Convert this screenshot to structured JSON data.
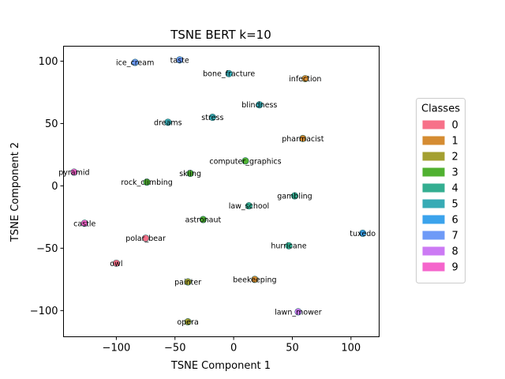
{
  "chart_data": {
    "type": "scatter",
    "title": "TSNE BERT k=10",
    "xlabel": "TSNE Component 1",
    "ylabel": "TSNE Component 2",
    "xlim": [
      -145,
      124
    ],
    "ylim": [
      -121,
      112
    ],
    "xticks": [
      -100,
      -50,
      0,
      50,
      100
    ],
    "yticks": [
      -100,
      -50,
      0,
      50,
      100
    ],
    "tick_labels": {
      "x": [
        "−100",
        "−50",
        "0",
        "50",
        "100"
      ],
      "y": [
        "−100",
        "−50",
        "0",
        "50",
        "100"
      ]
    },
    "grid": false,
    "legend": {
      "title": "Classes",
      "placement": "right",
      "entries": [
        {
          "label": "0",
          "color": "#f77189"
        },
        {
          "label": "1",
          "color": "#d58c32"
        },
        {
          "label": "2",
          "color": "#a4a031"
        },
        {
          "label": "3",
          "color": "#50b131"
        },
        {
          "label": "4",
          "color": "#34ae91"
        },
        {
          "label": "5",
          "color": "#37abb5"
        },
        {
          "label": "6",
          "color": "#3ba3ec"
        },
        {
          "label": "7",
          "color": "#6e9af7"
        },
        {
          "label": "8",
          "color": "#cc7af4"
        },
        {
          "label": "9",
          "color": "#f565cc"
        }
      ]
    },
    "points": [
      {
        "label": "ice_cream",
        "x": -84,
        "y": 99,
        "class": 7
      },
      {
        "label": "taste",
        "x": -46,
        "y": 101,
        "class": 7
      },
      {
        "label": "bone_fracture",
        "x": -4,
        "y": 90,
        "class": 5
      },
      {
        "label": "infection",
        "x": 61,
        "y": 86,
        "class": 1
      },
      {
        "label": "blindness",
        "x": 22,
        "y": 65,
        "class": 5
      },
      {
        "label": "stress",
        "x": -18,
        "y": 55,
        "class": 5
      },
      {
        "label": "dreams",
        "x": -56,
        "y": 51,
        "class": 5
      },
      {
        "label": "pharmacist",
        "x": 59,
        "y": 38,
        "class": 1
      },
      {
        "label": "computer_graphics",
        "x": 10,
        "y": 20,
        "class": 3
      },
      {
        "label": "pyramid",
        "x": -136,
        "y": 11,
        "class": 9
      },
      {
        "label": "skiing",
        "x": -37,
        "y": 10,
        "class": 3
      },
      {
        "label": "rock_climbing",
        "x": -74,
        "y": 3,
        "class": 3
      },
      {
        "label": "gambling",
        "x": 52,
        "y": -8,
        "class": 4
      },
      {
        "label": "law_school",
        "x": 13,
        "y": -16,
        "class": 4
      },
      {
        "label": "astronaut",
        "x": -26,
        "y": -27,
        "class": 3
      },
      {
        "label": "castle",
        "x": -127,
        "y": -30,
        "class": 9
      },
      {
        "label": "tuxedo",
        "x": 110,
        "y": -38,
        "class": 6
      },
      {
        "label": "polar_bear",
        "x": -75,
        "y": -42,
        "class": 0
      },
      {
        "label": "hurricane",
        "x": 47,
        "y": -48,
        "class": 4
      },
      {
        "label": "owl",
        "x": -100,
        "y": -62,
        "class": 0
      },
      {
        "label": "beekeeping",
        "x": 18,
        "y": -75,
        "class": 1
      },
      {
        "label": "painter",
        "x": -39,
        "y": -77,
        "class": 2
      },
      {
        "label": "lawn_mower",
        "x": 55,
        "y": -101,
        "class": 8
      },
      {
        "label": "opera",
        "x": -39,
        "y": -109,
        "class": 2
      }
    ]
  }
}
